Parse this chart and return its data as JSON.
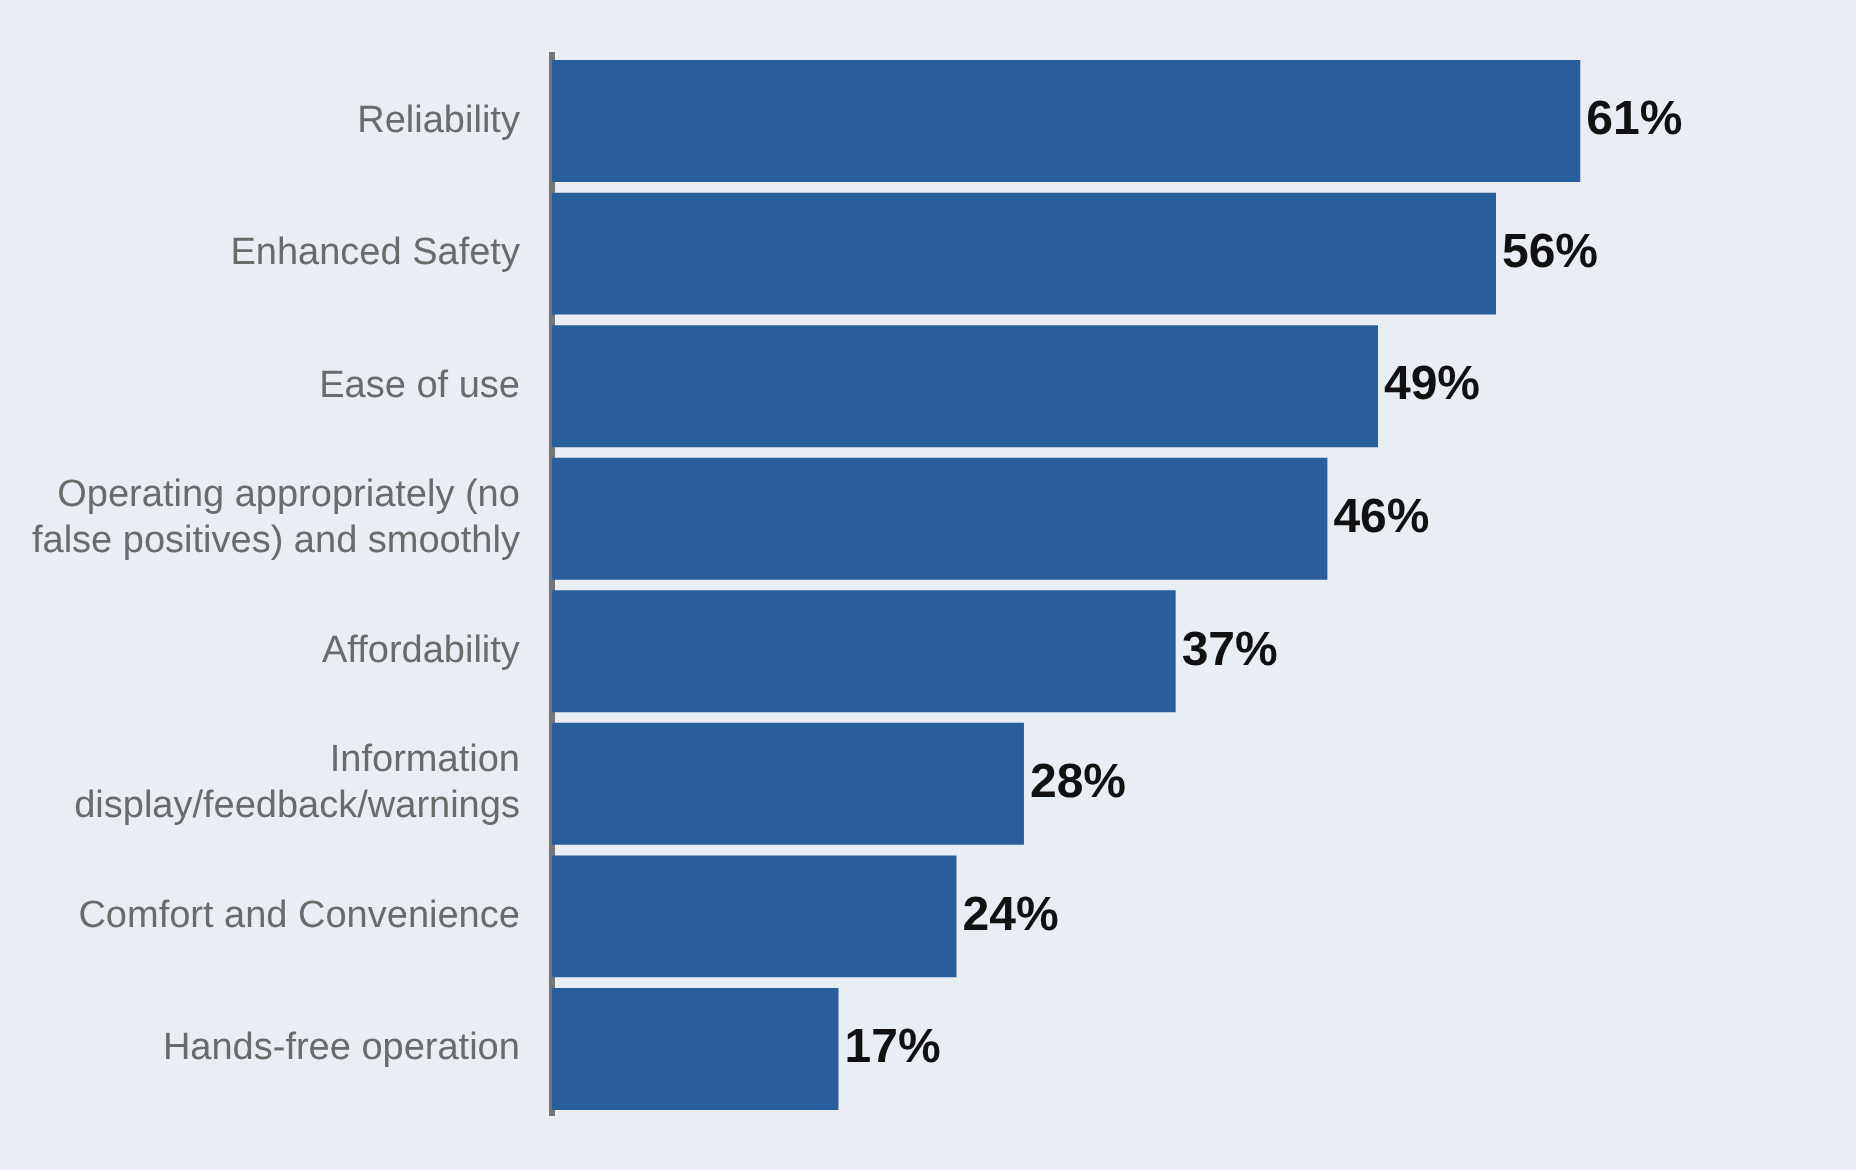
{
  "chart_data": {
    "type": "bar",
    "orientation": "horizontal",
    "categories": [
      "Reliability",
      "Enhanced Safety",
      "Ease of use",
      "Operating appropriately (no false positives) and smoothly",
      "Affordability",
      "Information display/feedback/warnings",
      "Comfort and Convenience",
      "Hands-free operation"
    ],
    "values": [
      61,
      56,
      49,
      46,
      37,
      28,
      24,
      17
    ],
    "value_labels": [
      "61%",
      "56%",
      "49%",
      "46%",
      "37%",
      "28%",
      "24%",
      "17%"
    ],
    "color": "#2a5d9c"
  }
}
